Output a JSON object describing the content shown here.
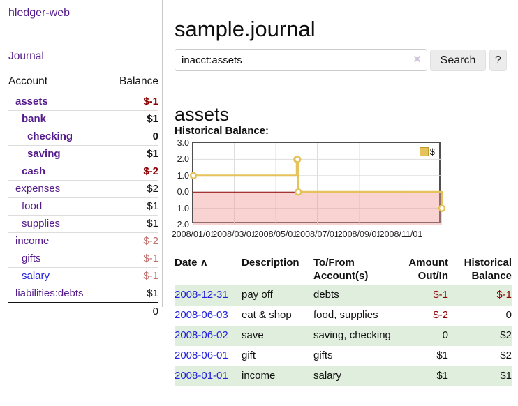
{
  "colors": {
    "link_purple": "#551a8b",
    "link_blue": "#2323dd",
    "negative_strong": "#8b0000",
    "negative_muted": "#c0706c",
    "row_stripe_green": "#e0eedd",
    "chart_line_gold": "#e6c35a"
  },
  "sidebar": {
    "app_title": "hledger-web",
    "journal_link": "Journal",
    "accounts": {
      "header_account": "Account",
      "header_balance": "Balance",
      "rows": [
        {
          "name": "assets",
          "balance": "$-1"
        },
        {
          "name": "bank",
          "balance": "$1"
        },
        {
          "name": "checking",
          "balance": "0"
        },
        {
          "name": "saving",
          "balance": "$1"
        },
        {
          "name": "cash",
          "balance": "$-2"
        },
        {
          "name": "expenses",
          "balance": "$2"
        },
        {
          "name": "food",
          "balance": "$1"
        },
        {
          "name": "supplies",
          "balance": "$1"
        },
        {
          "name": "income",
          "balance": "$-2"
        },
        {
          "name": "gifts",
          "balance": "$-1"
        },
        {
          "name": "salary",
          "balance": "$-1"
        },
        {
          "name": "liabilities:debts",
          "balance": "$1"
        }
      ],
      "total": "0"
    }
  },
  "header": {
    "title": "sample.journal"
  },
  "search": {
    "value": "inacct:assets",
    "clear_icon": "✕",
    "search_label": "Search",
    "help_label": "?"
  },
  "account_view": {
    "heading": "assets",
    "chart_title": "Historical Balance:"
  },
  "chart_data": {
    "type": "line",
    "step": true,
    "title": "Historical Balance:",
    "series": [
      {
        "name": "$",
        "points": [
          {
            "date": "2008-01-01",
            "value": 1
          },
          {
            "date": "2008-06-01",
            "value": 2
          },
          {
            "date": "2008-06-02",
            "value": 2
          },
          {
            "date": "2008-06-03",
            "value": 0
          },
          {
            "date": "2008-12-31",
            "value": -1
          }
        ]
      }
    ],
    "x_range": [
      "2008-01-01",
      "2008-12-31"
    ],
    "ylim": [
      -2,
      3
    ],
    "y_ticks": [
      "3.0",
      "2.0",
      "1.0",
      "0.0",
      "-1.0",
      "-2.0"
    ],
    "x_ticks": [
      "2008/01/01",
      "2008/03/01",
      "2008/05/01",
      "2008/07/01",
      "2008/09/01",
      "2008/11/01"
    ],
    "legend": {
      "label": "$",
      "position": "top-right"
    },
    "grid": true,
    "line_color": "#e6c35a",
    "zero_line_color": "#8b0000",
    "negative_region_fill": "rgba(240,150,145,0.42)",
    "grid_color": "#dddddd"
  },
  "register": {
    "headers": {
      "date": "Date",
      "sort_icon": "∧",
      "description": "Description",
      "accounts": "To/From Account(s)",
      "amount": "Amount Out/In",
      "balance": "Historical Balance"
    },
    "rows": [
      {
        "date": "2008-12-31",
        "description": "pay off",
        "accounts": "debts",
        "amount": "$-1",
        "balance": "$-1"
      },
      {
        "date": "2008-06-03",
        "description": "eat & shop",
        "accounts": "food, supplies",
        "amount": "$-2",
        "balance": "0"
      },
      {
        "date": "2008-06-02",
        "description": "save",
        "accounts": "saving, checking",
        "amount": "0",
        "balance": "$2"
      },
      {
        "date": "2008-06-01",
        "description": "gift",
        "accounts": "gifts",
        "amount": "$1",
        "balance": "$2"
      },
      {
        "date": "2008-01-01",
        "description": "income",
        "accounts": "salary",
        "amount": "$1",
        "balance": "$1"
      }
    ]
  }
}
